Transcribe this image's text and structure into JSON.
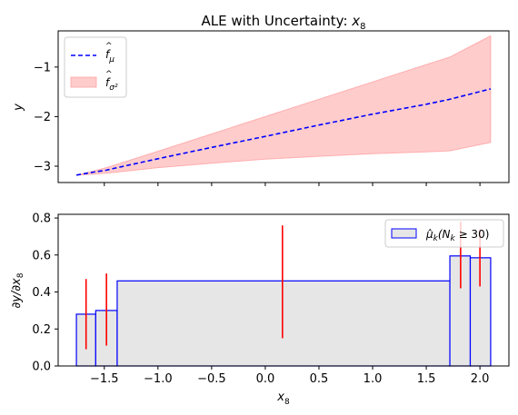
{
  "chart_data": [
    {
      "type": "line",
      "title": "ALE with Uncertainty: x₈",
      "title_prefix": "ALE with Uncertainty: ",
      "title_var": "x",
      "title_sub": "8",
      "xlabel": "",
      "ylabel": "y",
      "xlim": [
        -1.93,
        2.27
      ],
      "ylim": [
        -3.33,
        -0.27
      ],
      "yticks": [
        -3,
        -2,
        -1
      ],
      "ytick_labels": [
        "−3",
        "−2",
        "−1"
      ],
      "legend_position": "upper-left",
      "series": [
        {
          "name": "f̂_μ",
          "style": "dashed",
          "color": "#0000ff",
          "x": [
            -1.76,
            -1.6,
            -1.48,
            -1.38,
            -1.0,
            -0.5,
            0.0,
            0.5,
            1.0,
            1.5,
            1.72,
            2.1
          ],
          "y": [
            -3.18,
            -3.12,
            -3.08,
            -3.03,
            -2.85,
            -2.62,
            -2.4,
            -2.17,
            -1.95,
            -1.75,
            -1.65,
            -1.44
          ]
        }
      ],
      "band": {
        "name": "f̂_σ²",
        "color": "#ff9999",
        "x": [
          -1.76,
          -1.6,
          -1.48,
          -1.38,
          -1.0,
          -0.5,
          0.0,
          0.5,
          1.0,
          1.5,
          1.72,
          2.1
        ],
        "upper": [
          -3.18,
          -3.1,
          -3.03,
          -2.96,
          -2.7,
          -2.35,
          -2.0,
          -1.65,
          -1.3,
          -0.95,
          -0.8,
          -0.37
        ],
        "lower": [
          -3.18,
          -3.16,
          -3.14,
          -3.12,
          -3.03,
          -2.94,
          -2.86,
          -2.8,
          -2.75,
          -2.71,
          -2.69,
          -2.52
        ]
      },
      "legend": [
        {
          "kind": "line",
          "label_main": "f",
          "label_sub": "μ"
        },
        {
          "kind": "patch",
          "label_main": "f",
          "label_sub": "σ²"
        }
      ]
    },
    {
      "type": "bar",
      "title": "",
      "xlabel": "x₈",
      "xlabel_var": "x",
      "xlabel_sub": "8",
      "ylabel": "∂y/∂x₈",
      "ylabel_main": "∂y/∂x",
      "ylabel_sub": "8",
      "xlim": [
        -1.93,
        2.27
      ],
      "ylim": [
        0.0,
        0.82
      ],
      "xticks": [
        -1.5,
        -1.0,
        -0.5,
        0.0,
        0.5,
        1.0,
        1.5,
        2.0
      ],
      "xtick_labels": [
        "−1.5",
        "−1.0",
        "−0.5",
        "0.0",
        "0.5",
        "1.0",
        "1.5",
        "2.0"
      ],
      "yticks": [
        0.0,
        0.2,
        0.4,
        0.6,
        0.8
      ],
      "ytick_labels": [
        "0.0",
        "0.2",
        "0.4",
        "0.6",
        "0.8"
      ],
      "legend_position": "upper-right",
      "legend_label": "μ̂k(Nk ≥ 30)",
      "legend_label_parts": {
        "mu": "μ̂",
        "sub": "k",
        "rest": "(N",
        "sub2": "k",
        "tail": " ≥ 30)"
      },
      "bars": [
        {
          "x0": -1.76,
          "x1": -1.58,
          "value": 0.28
        },
        {
          "x0": -1.58,
          "x1": -1.38,
          "value": 0.3
        },
        {
          "x0": -1.38,
          "x1": 1.72,
          "value": 0.46
        },
        {
          "x0": 1.72,
          "x1": 1.91,
          "value": 0.595
        },
        {
          "x0": 1.91,
          "x1": 2.1,
          "value": 0.585
        }
      ],
      "error_bars": [
        {
          "x": -1.67,
          "low": 0.09,
          "high": 0.47
        },
        {
          "x": -1.48,
          "low": 0.11,
          "high": 0.5
        },
        {
          "x": 0.16,
          "low": 0.15,
          "high": 0.76
        },
        {
          "x": 1.82,
          "low": 0.42,
          "high": 0.78
        },
        {
          "x": 2.0,
          "low": 0.43,
          "high": 0.74
        }
      ],
      "colors": {
        "bar_fill": "#e6e6e6",
        "bar_edge": "#0000ff",
        "error": "#ff0000"
      }
    }
  ]
}
